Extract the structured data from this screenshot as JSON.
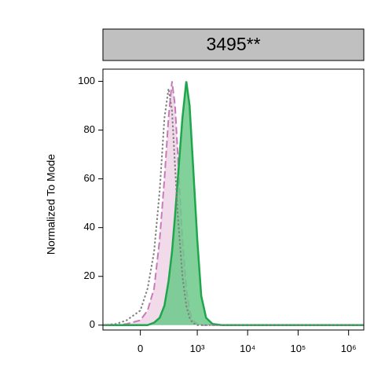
{
  "chart_data": {
    "type": "histogram-overlay",
    "title": "3495**",
    "y_label": "Normalized To Mode",
    "xscale": "biexponential",
    "xlim": [
      -400,
      2000000
    ],
    "xticks": [
      0,
      {
        "value": 1000,
        "label": "10³"
      },
      {
        "value": 10000,
        "label": "10⁴"
      },
      {
        "value": 100000,
        "label": "10⁵"
      },
      {
        "value": 1000000,
        "label": "10⁶"
      }
    ],
    "ylim": [
      -2,
      105
    ],
    "yticks": [
      0,
      20,
      40,
      60,
      80,
      100
    ],
    "x": [
      -400,
      -200,
      -100,
      0,
      50,
      100,
      150,
      200,
      250,
      300,
      350,
      400,
      500,
      600,
      700,
      800,
      1000,
      1200,
      1500,
      2000,
      3000,
      5000,
      10000,
      100000,
      1000000,
      2000000
    ],
    "series": [
      {
        "color": "#c77bb8",
        "fill": "#efd3e6",
        "dash": "dashed",
        "values": [
          0,
          0,
          0.5,
          2,
          6,
          15,
          35,
          60,
          85,
          100,
          90,
          70,
          35,
          15,
          6,
          2,
          0.5,
          0,
          0,
          0,
          0,
          0,
          0,
          0,
          0,
          0
        ]
      },
      {
        "color": "#1ea64c",
        "fill": "#6cc98a",
        "dash": "solid",
        "values": [
          0,
          0,
          0,
          0,
          0,
          1,
          3,
          8,
          18,
          30,
          45,
          60,
          85,
          100,
          90,
          70,
          35,
          12,
          3,
          0.5,
          0,
          0,
          0,
          0,
          0,
          0
        ]
      },
      {
        "color": "#808080",
        "fill": "none",
        "dash": "dotted",
        "values": [
          0,
          0.5,
          2,
          6,
          15,
          30,
          55,
          85,
          97,
          88,
          65,
          45,
          20,
          8,
          3,
          1,
          0,
          0,
          0,
          0,
          0,
          0,
          0,
          0,
          0,
          0
        ]
      }
    ]
  }
}
